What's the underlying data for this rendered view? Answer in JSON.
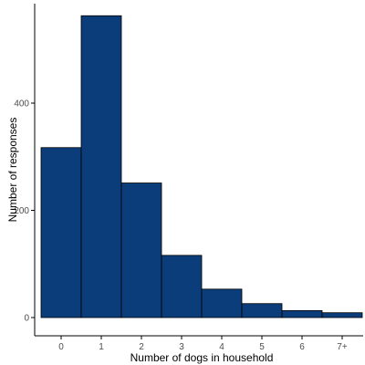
{
  "chart_data": {
    "type": "bar",
    "title": "",
    "xlabel": "Number of dogs in household",
    "ylabel": "Number of responses",
    "categories": [
      "0",
      "1",
      "2",
      "3",
      "4",
      "5",
      "6",
      "7+"
    ],
    "values": [
      317,
      563,
      251,
      116,
      53,
      26,
      13,
      9
    ],
    "ylim": [
      0,
      600
    ],
    "yticks": [
      0,
      200,
      400
    ],
    "grid": false,
    "legend": "none",
    "bar_color": "#0a3d7a",
    "bar_edge_color": "#000000"
  }
}
